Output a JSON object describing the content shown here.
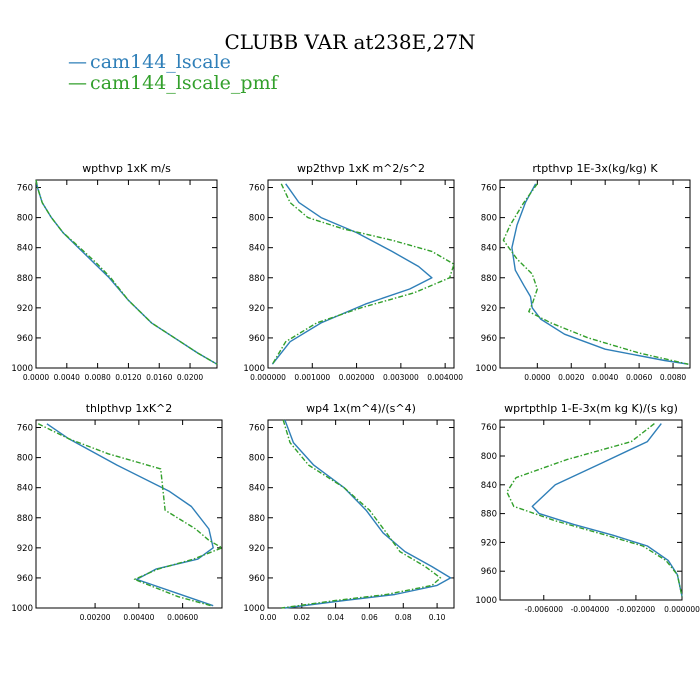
{
  "figure": {
    "title": "CLUBB VAR at238E,27N",
    "legend": [
      {
        "label": "cam144_lscale",
        "color": "#2f7fb8"
      },
      {
        "label": "cam144_lscale_pmf",
        "color": "#33a02c"
      }
    ]
  },
  "chart_data": [
    {
      "type": "line",
      "title": "wpthvp  1xK m/s",
      "xlim": [
        0.0,
        0.0235
      ],
      "xticks": [
        0.0,
        0.004,
        0.008,
        0.012,
        0.016,
        0.02
      ],
      "xticklabels": [
        "0.0000",
        "0.0040",
        "0.0080",
        "0.0120",
        "0.0160",
        "0.0200"
      ],
      "ylim": [
        1000,
        750
      ],
      "yticks": [
        760,
        800,
        840,
        880,
        920,
        960,
        1000
      ],
      "series": [
        {
          "name": "cam144_lscale",
          "color": "#2f7fb8",
          "dash": false,
          "x": [
            0.0,
            0.0002,
            0.0008,
            0.002,
            0.0035,
            0.0055,
            0.0075,
            0.0095,
            0.012,
            0.015,
            0.018,
            0.021,
            0.0235
          ],
          "y": [
            750,
            760,
            780,
            800,
            820,
            840,
            860,
            880,
            910,
            940,
            960,
            980,
            995
          ]
        },
        {
          "name": "cam144_lscale_pmf",
          "color": "#33a02c",
          "dash": true,
          "x": [
            0.0,
            0.0002,
            0.0008,
            0.002,
            0.0035,
            0.0057,
            0.0078,
            0.0097,
            0.012,
            0.015,
            0.018,
            0.021,
            0.0235
          ],
          "y": [
            750,
            760,
            780,
            800,
            820,
            840,
            860,
            880,
            910,
            940,
            960,
            980,
            995
          ]
        }
      ]
    },
    {
      "type": "line",
      "title": "wp2thvp  1xK m^2/s^2",
      "xlim": [
        0.0,
        0.0042
      ],
      "xticks": [
        0.0,
        0.001,
        0.002,
        0.003,
        0.004
      ],
      "xticklabels": [
        "0.000000",
        "0.001000",
        "0.002000",
        "0.003000",
        "0.004000"
      ],
      "ylim": [
        1000,
        750
      ],
      "yticks": [
        760,
        800,
        840,
        880,
        920,
        960,
        1000
      ],
      "series": [
        {
          "name": "cam144_lscale",
          "color": "#2f7fb8",
          "dash": false,
          "x": [
            0.0004,
            0.0007,
            0.0012,
            0.002,
            0.0028,
            0.0034,
            0.0037,
            0.0032,
            0.0022,
            0.0012,
            0.0005,
            0.0001
          ],
          "y": [
            755,
            780,
            800,
            820,
            845,
            865,
            880,
            895,
            915,
            940,
            965,
            995
          ]
        },
        {
          "name": "cam144_lscale_pmf",
          "color": "#33a02c",
          "dash": true,
          "x": [
            0.0003,
            0.0005,
            0.0009,
            0.0017,
            0.0028,
            0.0037,
            0.0042,
            0.0041,
            0.0033,
            0.0021,
            0.0011,
            0.0004,
            0.0001
          ],
          "y": [
            755,
            780,
            800,
            815,
            830,
            845,
            862,
            880,
            900,
            920,
            940,
            965,
            995
          ]
        }
      ]
    },
    {
      "type": "line",
      "title": "rtpthvp  1E-3x(kg/kg) K",
      "xlim": [
        -0.0022,
        0.009
      ],
      "xticks": [
        0.0,
        0.002,
        0.004,
        0.006,
        0.008
      ],
      "xticklabels": [
        "0.0000",
        "0.0020",
        "0.0040",
        "0.0060",
        "0.0080"
      ],
      "ylim": [
        1000,
        750
      ],
      "yticks": [
        760,
        800,
        840,
        880,
        920,
        960,
        1000
      ],
      "series": [
        {
          "name": "cam144_lscale",
          "color": "#2f7fb8",
          "dash": false,
          "x": [
            -0.0001,
            -0.0007,
            -0.0012,
            -0.0015,
            -0.0013,
            -0.0008,
            -0.0004,
            -0.0003,
            0.0002,
            0.0016,
            0.004,
            0.0075,
            0.0089
          ],
          "y": [
            755,
            780,
            810,
            840,
            870,
            890,
            905,
            920,
            935,
            955,
            975,
            990,
            995
          ]
        },
        {
          "name": "cam144_lscale_pmf",
          "color": "#33a02c",
          "dash": true,
          "x": [
            0.0,
            -0.0008,
            -0.0016,
            -0.002,
            -0.0012,
            -0.0003,
            0.0,
            -0.0003,
            -0.0005,
            0.0008,
            0.003,
            0.006,
            0.0089
          ],
          "y": [
            755,
            780,
            810,
            830,
            855,
            875,
            895,
            915,
            925,
            940,
            960,
            980,
            995
          ]
        }
      ]
    },
    {
      "type": "line",
      "title": "thlpthvp  1xK^2",
      "xlim": [
        -0.0007,
        0.0078
      ],
      "xticks": [
        0.002,
        0.004,
        0.006
      ],
      "xticklabels": [
        "0.00200",
        "0.00400",
        "0.00600"
      ],
      "ylim": [
        1000,
        750
      ],
      "yticks": [
        760,
        800,
        840,
        880,
        920,
        960,
        1000
      ],
      "series": [
        {
          "name": "cam144_lscale",
          "color": "#2f7fb8",
          "dash": false,
          "x": [
            -0.0002,
            0.0008,
            0.003,
            0.0054,
            0.0064,
            0.0072,
            0.0074,
            0.0067,
            0.0048,
            0.0039,
            0.0062,
            0.0074
          ],
          "y": [
            755,
            775,
            810,
            845,
            865,
            895,
            920,
            935,
            948,
            962,
            985,
            997
          ]
        },
        {
          "name": "cam144_lscale_pmf",
          "color": "#33a02c",
          "dash": true,
          "x": [
            -0.0006,
            0.0008,
            0.0026,
            0.005,
            0.0052,
            0.0066,
            0.0072,
            0.0078,
            0.0065,
            0.0049,
            0.0038,
            0.0058,
            0.0073
          ],
          "y": [
            755,
            775,
            795,
            815,
            870,
            895,
            910,
            920,
            935,
            948,
            962,
            985,
            997
          ]
        }
      ]
    },
    {
      "type": "line",
      "title": "wp4  1x(m^4)/(s^4)",
      "xlim": [
        0.0,
        0.11
      ],
      "xticks": [
        0.0,
        0.02,
        0.04,
        0.06,
        0.08,
        0.1
      ],
      "xticklabels": [
        "0.00",
        "0.02",
        "0.04",
        "0.06",
        "0.08",
        "0.10"
      ],
      "ylim": [
        1000,
        750
      ],
      "yticks": [
        760,
        800,
        840,
        880,
        920,
        960,
        1000
      ],
      "series": [
        {
          "name": "cam144_lscale",
          "color": "#2f7fb8",
          "dash": false,
          "x": [
            0.01,
            0.015,
            0.027,
            0.045,
            0.058,
            0.068,
            0.081,
            0.097,
            0.108,
            0.1,
            0.075,
            0.045,
            0.01
          ],
          "y": [
            750,
            780,
            810,
            840,
            870,
            900,
            925,
            945,
            960,
            970,
            982,
            990,
            1000
          ]
        },
        {
          "name": "cam144_lscale_pmf",
          "color": "#33a02c",
          "dash": true,
          "x": [
            0.009,
            0.013,
            0.024,
            0.045,
            0.06,
            0.07,
            0.078,
            0.093,
            0.102,
            0.097,
            0.07,
            0.04,
            0.008
          ],
          "y": [
            750,
            780,
            810,
            840,
            870,
            900,
            925,
            945,
            960,
            970,
            982,
            990,
            1000
          ]
        }
      ]
    },
    {
      "type": "line",
      "title": "wprtpthlp  1-E-3x(m kg K)/(s kg)",
      "xlim": [
        -0.0079,
        0.0
      ],
      "xticks": [
        -0.006,
        -0.004,
        -0.002,
        0.0
      ],
      "xticklabels": [
        "-0.006000",
        "-0.004000",
        "-0.002000",
        "0.000000"
      ],
      "ylim": [
        1000,
        750
      ],
      "yticks": [
        760,
        800,
        840,
        880,
        920,
        960,
        1000
      ],
      "series": [
        {
          "name": "cam144_lscale",
          "color": "#2f7fb8",
          "dash": false,
          "x": [
            -0.0009,
            -0.0015,
            -0.0035,
            -0.0055,
            -0.0065,
            -0.0062,
            -0.0047,
            -0.003,
            -0.0015,
            -0.0006,
            -0.0002,
            0.0
          ],
          "y": [
            755,
            780,
            810,
            840,
            870,
            880,
            895,
            910,
            925,
            945,
            965,
            995
          ]
        },
        {
          "name": "cam144_lscale_pmf",
          "color": "#33a02c",
          "dash": true,
          "x": [
            -0.0012,
            -0.0022,
            -0.005,
            -0.0072,
            -0.0076,
            -0.0073,
            -0.0055,
            -0.0033,
            -0.0017,
            -0.0007,
            -0.0002,
            0.0
          ],
          "y": [
            755,
            780,
            805,
            830,
            850,
            870,
            890,
            910,
            925,
            945,
            965,
            995
          ]
        }
      ]
    }
  ]
}
